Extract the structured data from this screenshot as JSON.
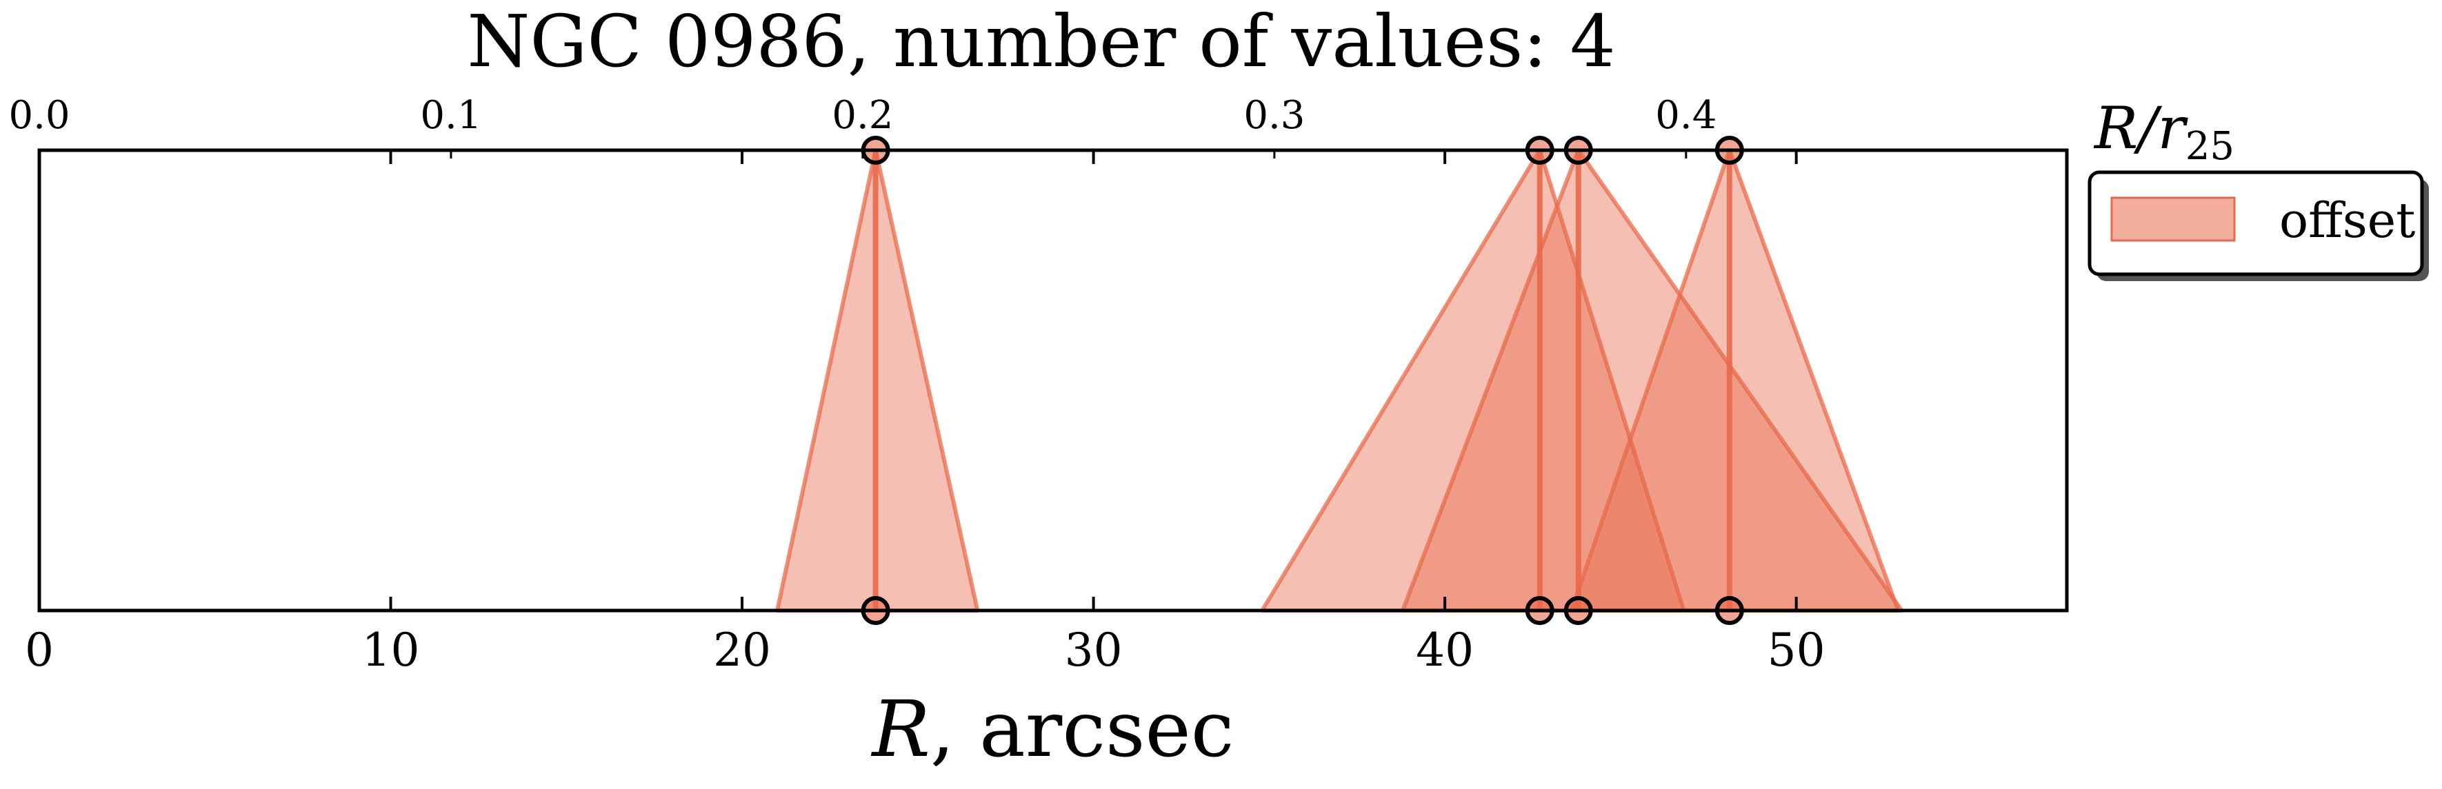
{
  "chart_data": {
    "type": "area",
    "title": "NGC 0986, number of values: 4",
    "xlabel": "R, arcsec",
    "top_axis_label": "R/r25",
    "xlim": [
      0,
      57.7
    ],
    "x_ticks": [
      "0",
      "10",
      "20",
      "30",
      "40",
      "50"
    ],
    "top_axis_ticks": [
      "0.0",
      "0.1",
      "0.2",
      "0.3",
      "0.4"
    ],
    "top_axis_range": [
      0.0,
      0.4925
    ],
    "grid": false,
    "legend": {
      "position": "right",
      "entries": [
        "offset"
      ]
    },
    "colors": {
      "fill": "#e8694a",
      "edge": "#e8694a",
      "marker_edge": "#000000",
      "marker_fill": "#e8694a"
    },
    "series": [
      {
        "name": "offset",
        "points": [
          {
            "x": 23.8,
            "x_low": 21.0,
            "x_high": 26.7
          },
          {
            "x": 42.7,
            "x_low": 34.8,
            "x_high": 46.8
          },
          {
            "x": 43.8,
            "x_low": 38.8,
            "x_high": 53.0
          },
          {
            "x": 48.1,
            "x_low": 43.6,
            "x_high": 52.9
          }
        ]
      }
    ]
  }
}
